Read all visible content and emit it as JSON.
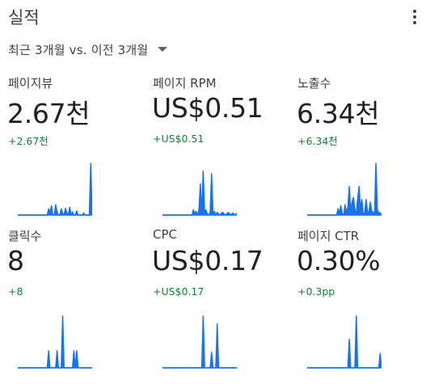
{
  "card": {
    "title": "실적",
    "period_label": "최근 3개월 vs. 이전 3개월",
    "more_icon": "more-vert-icon",
    "dropdown_icon": "arrow-drop-down-icon"
  },
  "colors": {
    "positive_delta": "#188038",
    "sparkline": "#1a73e8",
    "text": "#202124"
  },
  "metrics": [
    {
      "label": "페이지뷰",
      "value": "2.67천",
      "delta": "+2.67천",
      "trend": [
        0,
        0,
        0,
        0,
        0,
        0,
        0,
        0,
        0,
        0,
        0,
        0,
        0,
        0,
        0,
        0,
        0,
        0,
        0,
        0,
        0,
        0,
        0.12,
        0.05,
        0.18,
        0,
        0,
        0.2,
        0.06,
        0,
        0,
        0.12,
        0.03,
        0,
        0.13,
        0.04,
        0,
        0.15,
        0,
        0.06,
        0,
        0,
        0.08,
        0,
        0,
        0,
        0,
        0.04,
        0,
        0,
        0,
        0,
        1,
        0
      ]
    },
    {
      "label": "페이지 RPM",
      "value": "US$0.51",
      "delta": "+US$0.51",
      "trend": [
        0,
        0,
        0,
        0,
        0,
        0,
        0,
        0,
        0,
        0,
        0,
        0,
        0,
        0,
        0,
        0,
        0,
        0,
        0,
        0,
        0,
        0,
        0.1,
        0.04,
        0.07,
        0,
        0.1,
        0.6,
        0.04,
        0.85,
        0.05,
        0.1,
        0.02,
        0,
        0.06,
        0.8,
        0.03,
        0.07,
        0,
        0.05,
        0.02,
        0,
        0.04,
        0.05,
        0.02,
        0,
        0.03,
        0.05,
        0.02,
        0,
        0.04,
        0.02,
        0,
        0.04
      ]
    },
    {
      "label": "노출수",
      "value": "6.34천",
      "delta": "+6.34천",
      "trend": [
        0,
        0,
        0,
        0,
        0,
        0,
        0,
        0,
        0,
        0,
        0,
        0,
        0,
        0,
        0,
        0,
        0,
        0,
        0,
        0,
        0,
        0,
        0.12,
        0.04,
        0.18,
        0.03,
        0,
        0.2,
        0.05,
        0.15,
        0.55,
        0.08,
        0.25,
        0.34,
        0.1,
        0.04,
        0.32,
        0.55,
        0.12,
        0.3,
        0,
        0.05,
        0.3,
        0.06,
        0.05,
        0.25,
        0.08,
        0.05,
        0,
        1,
        0.1,
        0.05,
        0.04,
        0
      ]
    },
    {
      "label": "클릭수",
      "value": "8",
      "delta": "+8",
      "trend": [
        0,
        0,
        0,
        0,
        0,
        0,
        0,
        0,
        0,
        0,
        0,
        0,
        0,
        0,
        0,
        0,
        0,
        0,
        0,
        0,
        0,
        0,
        0.33,
        0,
        0,
        0,
        0,
        0,
        0.33,
        0,
        0,
        0,
        1,
        0,
        0,
        0,
        0,
        0,
        0,
        0,
        0.33,
        0,
        0.33,
        0,
        0,
        0,
        0,
        0,
        0,
        0,
        0,
        0,
        0,
        0
      ]
    },
    {
      "label": "CPC",
      "value": "US$0.17",
      "delta": "+US$0.17",
      "trend": [
        0,
        0,
        0,
        0,
        0,
        0,
        0,
        0,
        0,
        0,
        0,
        0,
        0,
        0,
        0,
        0,
        0,
        0,
        0,
        0,
        0,
        0,
        0,
        0,
        0,
        0,
        0,
        0,
        0,
        1,
        0,
        0,
        0,
        0,
        0,
        0.3,
        0,
        0,
        0,
        0.85,
        0,
        0,
        0,
        0,
        0,
        0,
        0,
        0,
        0,
        0,
        0,
        0,
        0,
        0
      ]
    },
    {
      "label": "페이지 CTR",
      "value": "0.30%",
      "delta": "+0.3pp",
      "trend": [
        0,
        0,
        0,
        0,
        0,
        0,
        0,
        0,
        0,
        0,
        0,
        0,
        0,
        0,
        0,
        0,
        0,
        0,
        0,
        0,
        0,
        0,
        0,
        0,
        0,
        0,
        0,
        0,
        0,
        0,
        0.55,
        0,
        0,
        0,
        0,
        1,
        0,
        0,
        0,
        0,
        0,
        0,
        0,
        0,
        0,
        0,
        0,
        0,
        0,
        0,
        0,
        0,
        0.28,
        0
      ]
    }
  ]
}
